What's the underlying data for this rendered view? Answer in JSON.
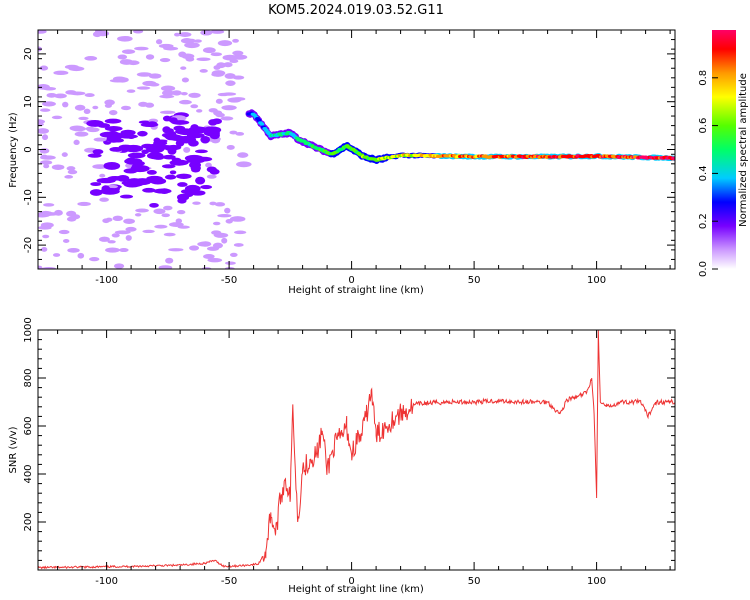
{
  "figure": {
    "title": "KOM5.2024.019.03.52.G11"
  },
  "chart_data": [
    {
      "type": "heatmap",
      "xlabel": "Height of straight line (km)",
      "ylabel": "Frequency (Hz)",
      "xlim": [
        -128,
        132
      ],
      "ylim": [
        -25,
        25
      ],
      "xticks": [
        -100,
        -50,
        0,
        50,
        100
      ],
      "yticks": [
        -20,
        -10,
        0,
        10,
        20
      ],
      "colorbar": {
        "label": "Normalized spectral amplitude",
        "ticks": [
          "0.0",
          "0.2",
          "0.4",
          "0.6",
          "0.8"
        ],
        "range": [
          0,
          1
        ],
        "colormap": [
          "#ffffff",
          "#cc99ff",
          "#7700ff",
          "#0000ff",
          "#00ccff",
          "#00ff66",
          "#55ff00",
          "#ffff00",
          "#ff9900",
          "#ff0000",
          "#ff0066"
        ]
      },
      "ridge": {
        "description_points": [
          [
            -40,
            7.5
          ],
          [
            -33,
            2.8
          ],
          [
            -25,
            3.5
          ],
          [
            -22,
            2.2
          ],
          [
            -15,
            0.5
          ],
          [
            -8,
            -1.0
          ],
          [
            -2,
            0.8
          ],
          [
            5,
            -1.5
          ],
          [
            10,
            -2.2
          ],
          [
            20,
            -1.2
          ],
          [
            50,
            -1.5
          ],
          [
            80,
            -1.5
          ],
          [
            100,
            -1.4
          ],
          [
            115,
            -1.6
          ],
          [
            132,
            -1.8
          ]
        ],
        "amplitude_points": [
          [
            -40,
            0.35
          ],
          [
            -30,
            0.45
          ],
          [
            -20,
            0.5
          ],
          [
            -10,
            0.55
          ],
          [
            0,
            0.6
          ],
          [
            10,
            0.65
          ],
          [
            20,
            0.72
          ],
          [
            40,
            0.8
          ],
          [
            60,
            0.85
          ],
          [
            80,
            0.9
          ],
          [
            100,
            0.95
          ],
          [
            132,
            0.95
          ]
        ]
      }
    },
    {
      "type": "line",
      "xlabel": "Height of straight line (km)",
      "ylabel": "SNR (v/v)",
      "xlim": [
        -128,
        132
      ],
      "ylim": [
        0,
        1000
      ],
      "xticks": [
        -100,
        -50,
        0,
        50,
        100
      ],
      "yticks": [
        200,
        400,
        600,
        800,
        1000
      ],
      "color": "#ee3333",
      "series": [
        {
          "values": [
            [
              -128,
              10
            ],
            [
              -110,
              12
            ],
            [
              -90,
              15
            ],
            [
              -70,
              20
            ],
            [
              -60,
              28
            ],
            [
              -56,
              40
            ],
            [
              -52,
              15
            ],
            [
              -45,
              18
            ],
            [
              -38,
              25
            ],
            [
              -35,
              80
            ],
            [
              -33,
              240
            ],
            [
              -31,
              150
            ],
            [
              -29,
              300
            ],
            [
              -27,
              380
            ],
            [
              -25,
              300
            ],
            [
              -24,
              690
            ],
            [
              -22,
              200
            ],
            [
              -20,
              420
            ],
            [
              -17,
              460
            ],
            [
              -14,
              490
            ],
            [
              -12,
              580
            ],
            [
              -10,
              420
            ],
            [
              -7,
              520
            ],
            [
              -4,
              560
            ],
            [
              -2,
              600
            ],
            [
              0,
              480
            ],
            [
              2,
              540
            ],
            [
              4,
              560
            ],
            [
              6,
              640
            ],
            [
              8,
              750
            ],
            [
              10,
              560
            ],
            [
              14,
              600
            ],
            [
              18,
              640
            ],
            [
              22,
              660
            ],
            [
              26,
              690
            ],
            [
              30,
              695
            ],
            [
              40,
              700
            ],
            [
              50,
              700
            ],
            [
              60,
              705
            ],
            [
              70,
              700
            ],
            [
              80,
              700
            ],
            [
              85,
              650
            ],
            [
              88,
              710
            ],
            [
              92,
              720
            ],
            [
              96,
              740
            ],
            [
              98,
              800
            ],
            [
              99,
              650
            ],
            [
              100,
              300
            ],
            [
              100.7,
              1000
            ],
            [
              101.5,
              700
            ],
            [
              104,
              680
            ],
            [
              110,
              700
            ],
            [
              118,
              700
            ],
            [
              121,
              640
            ],
            [
              124,
              700
            ],
            [
              132,
              700
            ]
          ]
        }
      ]
    }
  ]
}
